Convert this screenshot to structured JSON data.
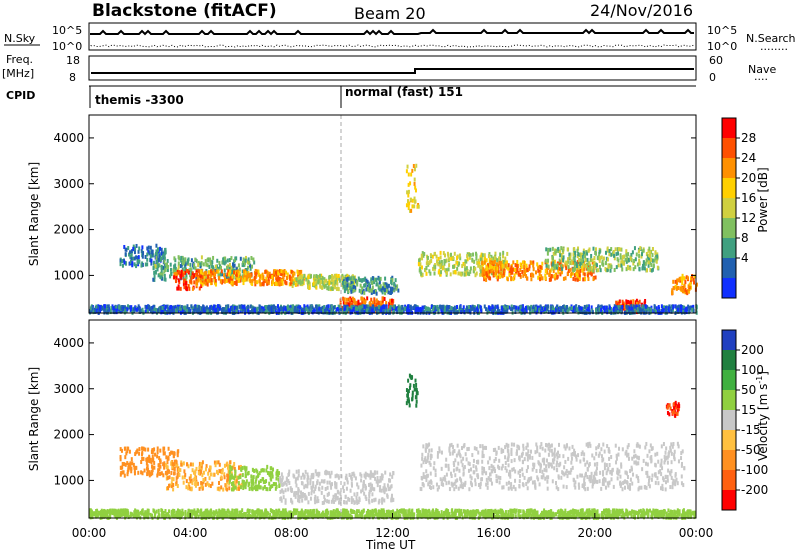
{
  "header": {
    "station": "Blackstone (fitACF)",
    "beam": "Beam 20",
    "date": "24/Nov/2016"
  },
  "top_panels": {
    "nsky_label": "N.Sky",
    "nsearch_label": "N.Search",
    "nsearch_line": "........",
    "nave_label": "Nave",
    "nave_line": "....",
    "exp_top": "10^5",
    "exp_bottom": "10^0",
    "freq_label": "Freq.",
    "freq_unit": "[MHz]",
    "freq_ticks": [
      "18",
      "8"
    ],
    "nave_ticks": [
      "60",
      "0"
    ],
    "cpid_label": "CPID",
    "cpid_segments": [
      {
        "label": "themis -3300"
      },
      {
        "label": "normal (fast) 151"
      }
    ]
  },
  "x_axis": {
    "label": "Time UT",
    "ticks": [
      "00:00",
      "04:00",
      "08:00",
      "12:00",
      "16:00",
      "20:00",
      "00:00"
    ]
  },
  "y_axis": {
    "label": "Slant Range [km]",
    "ticks": [
      "4000",
      "3000",
      "2000",
      "1000"
    ]
  },
  "colorbars": {
    "power": {
      "label": "Power [dB]",
      "ticks": [
        "28",
        "24",
        "20",
        "16",
        "12",
        "8",
        "4"
      ],
      "colors": [
        "#ff0000",
        "#ff5000",
        "#ff9000",
        "#ffd000",
        "#d0d040",
        "#80c060",
        "#40a080",
        "#2060b0",
        "#1030ff"
      ]
    },
    "velocity": {
      "label": "Velocity [m s^-1]",
      "ticks": [
        "200",
        "100",
        "50",
        "15",
        "-15",
        "-50",
        "-100",
        "-200"
      ],
      "colors": [
        "#2040c0",
        "#208040",
        "#40b040",
        "#90d040",
        "#c8c8c8",
        "#ffc040",
        "#ff9020",
        "#ff6010",
        "#ff0000"
      ]
    }
  },
  "chart_data": [
    {
      "type": "heatmap",
      "title": "Power [dB]",
      "xlabel": "Time UT",
      "ylabel": "Slant Range [km]",
      "xlim": [
        0,
        24
      ],
      "ylim": [
        180,
        4500
      ],
      "zlim": [
        0,
        30
      ],
      "blobs": [
        {
          "t0": 1.2,
          "t1": 3.0,
          "r0": 1200,
          "r1": 1650,
          "z": 6
        },
        {
          "t0": 2.5,
          "t1": 6.5,
          "r0": 900,
          "r1": 1400,
          "z": 10
        },
        {
          "t0": 3.3,
          "t1": 4.4,
          "r0": 700,
          "r1": 1100,
          "z": 26
        },
        {
          "t0": 4.2,
          "t1": 8.5,
          "r0": 800,
          "r1": 1100,
          "z": 22
        },
        {
          "t0": 8.0,
          "t1": 10.5,
          "r0": 700,
          "r1": 1000,
          "z": 14
        },
        {
          "t0": 10.0,
          "t1": 12.2,
          "r0": 600,
          "r1": 950,
          "z": 8
        },
        {
          "t0": 9.8,
          "t1": 12.0,
          "r0": 200,
          "r1": 500,
          "z": 24
        },
        {
          "t0": 12.5,
          "t1": 13.0,
          "r0": 2400,
          "r1": 3400,
          "z": 18
        },
        {
          "t0": 13.0,
          "t1": 16.5,
          "r0": 1000,
          "r1": 1500,
          "z": 14
        },
        {
          "t0": 15.5,
          "t1": 20.0,
          "r0": 900,
          "r1": 1300,
          "z": 22
        },
        {
          "t0": 18.0,
          "t1": 22.5,
          "r0": 1100,
          "r1": 1600,
          "z": 12
        },
        {
          "t0": 20.8,
          "t1": 22.0,
          "r0": 200,
          "r1": 450,
          "z": 26
        },
        {
          "t0": 23.0,
          "t1": 24.0,
          "r0": 600,
          "r1": 1000,
          "z": 22
        },
        {
          "t0": 0.0,
          "t1": 24.0,
          "r0": 180,
          "r1": 330,
          "z": 5
        }
      ]
    },
    {
      "type": "heatmap",
      "title": "Velocity [m s^-1]",
      "xlabel": "Time UT",
      "ylabel": "Slant Range [km]",
      "xlim": [
        0,
        24
      ],
      "ylim": [
        180,
        4500
      ],
      "zlim": [
        -200,
        200
      ],
      "blobs": [
        {
          "t0": 1.2,
          "t1": 3.5,
          "r0": 1100,
          "r1": 1700,
          "z": -60
        },
        {
          "t0": 3.0,
          "t1": 6.0,
          "r0": 800,
          "r1": 1400,
          "z": -50
        },
        {
          "t0": 5.5,
          "t1": 7.5,
          "r0": 800,
          "r1": 1300,
          "z": 30
        },
        {
          "t0": 7.5,
          "t1": 12.0,
          "r0": 500,
          "r1": 1200,
          "z": 0
        },
        {
          "t0": 12.5,
          "t1": 13.0,
          "r0": 2600,
          "r1": 3300,
          "z": 150
        },
        {
          "t0": 13.0,
          "t1": 23.5,
          "r0": 800,
          "r1": 1800,
          "z": 0
        },
        {
          "t0": 22.8,
          "t1": 23.3,
          "r0": 2400,
          "r1": 2700,
          "z": -200
        },
        {
          "t0": 0.0,
          "t1": 24.0,
          "r0": 180,
          "r1": 350,
          "z": 40
        }
      ]
    }
  ]
}
